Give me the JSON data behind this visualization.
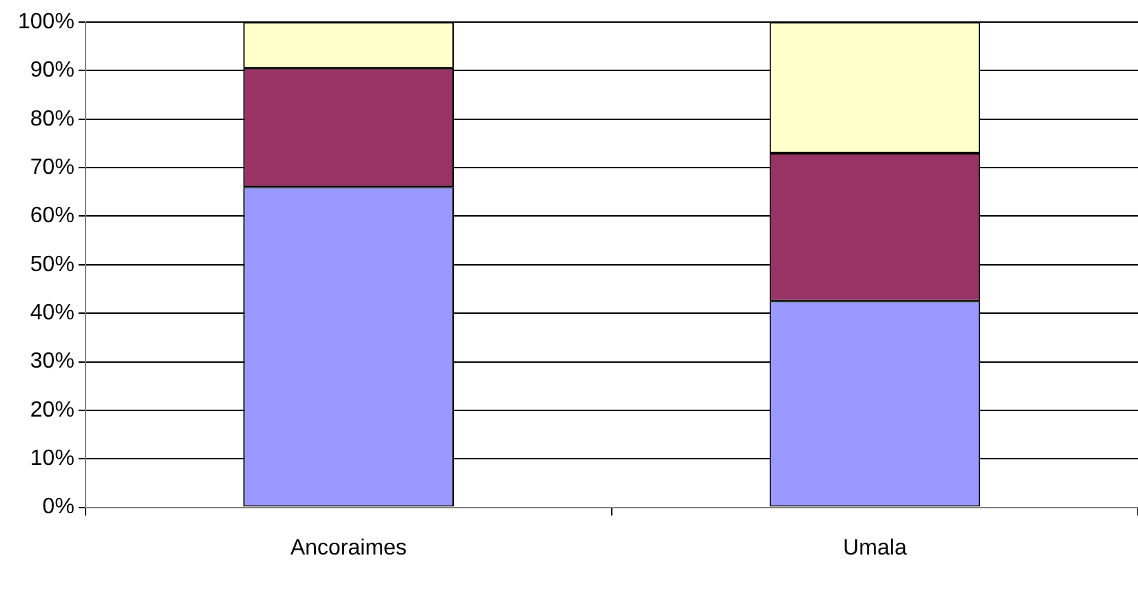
{
  "chart_data": {
    "type": "bar",
    "stacked": true,
    "categories": [
      "Ancoraimes",
      "Umala"
    ],
    "series": [
      {
        "color": "#9999ff",
        "values": [
          66,
          42.5
        ]
      },
      {
        "color": "#993366",
        "values": [
          24.5,
          30.5
        ]
      },
      {
        "color": "#ffffcc",
        "values": [
          9.5,
          27
        ]
      }
    ],
    "ylim": [
      0,
      100
    ],
    "yticks": [
      {
        "value": 0,
        "label": "0%"
      },
      {
        "value": 10,
        "label": "10%"
      },
      {
        "value": 20,
        "label": "20%"
      },
      {
        "value": 30,
        "label": "30%"
      },
      {
        "value": 40,
        "label": "40%"
      },
      {
        "value": 50,
        "label": "50%"
      },
      {
        "value": 60,
        "label": "60%"
      },
      {
        "value": 70,
        "label": "70%"
      },
      {
        "value": 80,
        "label": "80%"
      },
      {
        "value": 90,
        "label": "90%"
      },
      {
        "value": 100,
        "label": "100%"
      }
    ],
    "grid": "y",
    "legend": false
  }
}
